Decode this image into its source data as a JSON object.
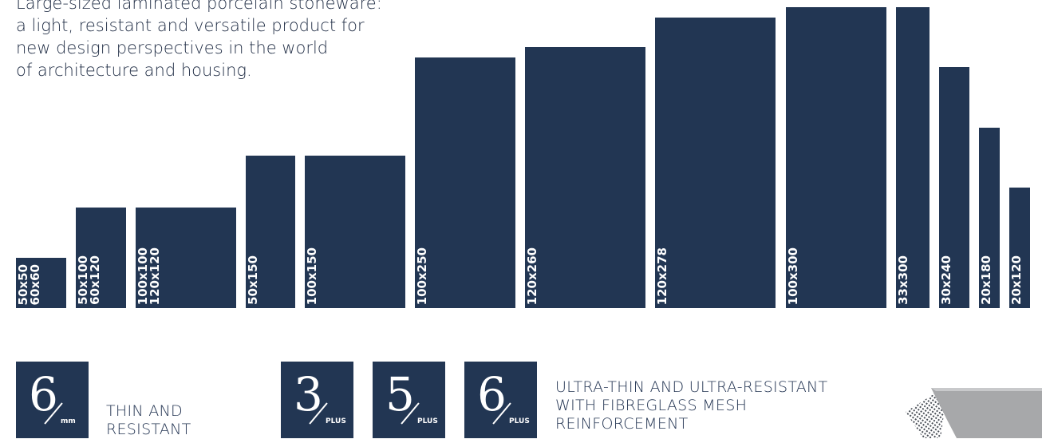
{
  "intro": {
    "lines": [
      "Large-sized laminated porcelain stoneware:",
      "a light, resistant and versatile product for",
      "new design perspectives in the world",
      "of architecture and housing."
    ]
  },
  "tile_sizes": [
    {
      "lines": [
        "50x50",
        "60x60"
      ]
    },
    {
      "lines": [
        "50x100",
        "60x120"
      ]
    },
    {
      "lines": [
        "100x100",
        "120x120"
      ]
    },
    {
      "lines": [
        "50x150"
      ]
    },
    {
      "lines": [
        "100x150"
      ]
    },
    {
      "lines": [
        "100x250"
      ]
    },
    {
      "lines": [
        "120x260"
      ]
    },
    {
      "lines": [
        "120x278"
      ]
    },
    {
      "lines": [
        "100x300"
      ]
    },
    {
      "lines": [
        "33x300"
      ]
    },
    {
      "lines": [
        "30x240"
      ]
    },
    {
      "lines": [
        "20x180"
      ]
    },
    {
      "lines": [
        "20x120"
      ]
    }
  ],
  "thin_group": {
    "badge": {
      "number": "6",
      "unit": "mm"
    },
    "caption": [
      "THIN AND",
      "RESISTANT"
    ]
  },
  "plus_group": {
    "badges": [
      {
        "number": "3",
        "unit": "PLUS"
      },
      {
        "number": "5",
        "unit": "PLUS"
      },
      {
        "number": "6",
        "unit": "PLUS"
      }
    ],
    "caption": [
      "ULTRA-THIN AND ULTRA-RESISTANT",
      "WITH FIBREGLASS MESH",
      "REINFORCEMENT"
    ]
  },
  "colors": {
    "navy": "#223653",
    "text": "#233452"
  },
  "icons": {
    "mesh": "fibreglass-mesh-slab-icon"
  }
}
